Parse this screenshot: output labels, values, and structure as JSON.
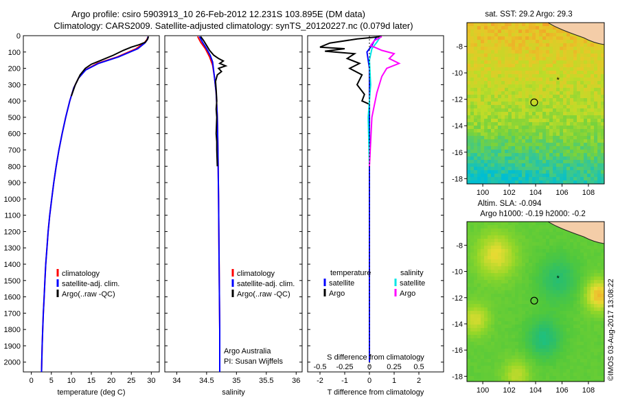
{
  "header": {
    "title_line1": "Argo profile: csiro 5903913_10 26-Feb-2012 12.231S 103.895E (DM data)",
    "title_line2": "Climatology: CARS2009. Satellite-adjusted climatology: synTS_20120227.nc (0.079d later)"
  },
  "colors": {
    "climatology": "#ff0000",
    "satellite": "#0000ff",
    "argo": "#000000",
    "sat_salinity": "#00e5e5",
    "argo_salinity": "#ff00ff"
  },
  "chart_data": [
    {
      "type": "line",
      "panel": "temperature",
      "xlabel": "temperature (deg C)",
      "xticks": [
        0,
        5,
        10,
        15,
        20,
        25,
        30
      ],
      "xlim": [
        -2,
        32
      ],
      "ylim": [
        2060,
        0
      ],
      "yticks": [
        0,
        100,
        200,
        300,
        400,
        500,
        600,
        700,
        800,
        900,
        1000,
        1100,
        1200,
        1300,
        1400,
        1500,
        1600,
        1700,
        1800,
        1900,
        2000
      ],
      "legend": [
        "climatology",
        "satellite-adj. clim.",
        "Argo(..raw -QC)"
      ],
      "series": [
        {
          "name": "climatology",
          "color": "#ff0000",
          "points": [
            [
              29.2,
              5
            ],
            [
              28.9,
              25
            ],
            [
              28.2,
              45
            ],
            [
              26.2,
              80
            ],
            [
              21.5,
              130
            ],
            [
              16.5,
              170
            ],
            [
              13.5,
              210
            ],
            [
              11.8,
              260
            ],
            [
              10.6,
              320
            ],
            [
              9.6,
              400
            ],
            [
              8.6,
              500
            ],
            [
              7.7,
              600
            ],
            [
              6.9,
              700
            ],
            [
              6.2,
              800
            ],
            [
              5.6,
              900
            ],
            [
              5.1,
              1000
            ],
            [
              4.6,
              1100
            ],
            [
              4.2,
              1200
            ],
            [
              3.9,
              1300
            ],
            [
              3.6,
              1400
            ],
            [
              3.4,
              1500
            ],
            [
              3.2,
              1600
            ],
            [
              3.0,
              1700
            ],
            [
              2.85,
              1800
            ],
            [
              2.7,
              1900
            ],
            [
              2.6,
              2000
            ],
            [
              2.55,
              2060
            ]
          ]
        },
        {
          "name": "satellite-adj. clim.",
          "color": "#0000ff",
          "points": [
            [
              29.2,
              5
            ],
            [
              29.0,
              25
            ],
            [
              28.4,
              45
            ],
            [
              26.6,
              80
            ],
            [
              21.8,
              130
            ],
            [
              16.8,
              170
            ],
            [
              13.6,
              210
            ],
            [
              11.8,
              260
            ],
            [
              10.6,
              320
            ],
            [
              9.6,
              400
            ],
            [
              8.6,
              500
            ],
            [
              7.7,
              600
            ],
            [
              6.9,
              700
            ],
            [
              6.2,
              800
            ],
            [
              5.6,
              900
            ],
            [
              5.1,
              1000
            ],
            [
              4.6,
              1100
            ],
            [
              4.2,
              1200
            ],
            [
              3.9,
              1300
            ],
            [
              3.6,
              1400
            ],
            [
              3.4,
              1500
            ],
            [
              3.2,
              1600
            ],
            [
              3.0,
              1700
            ],
            [
              2.85,
              1800
            ],
            [
              2.7,
              1900
            ],
            [
              2.6,
              2000
            ],
            [
              2.55,
              2060
            ]
          ]
        },
        {
          "name": "Argo(..raw -QC)",
          "color": "#000000",
          "points": [
            [
              29.3,
              5
            ],
            [
              29.1,
              20
            ],
            [
              28.5,
              40
            ],
            [
              27.0,
              55
            ],
            [
              25.0,
              70
            ],
            [
              23.0,
              90
            ],
            [
              20.5,
              120
            ],
            [
              17.5,
              150
            ],
            [
              15.0,
              175
            ],
            [
              13.5,
              200
            ],
            [
              12.2,
              240
            ],
            [
              11.0,
              300
            ],
            [
              10.0,
              370
            ]
          ]
        }
      ]
    },
    {
      "type": "line",
      "panel": "salinity",
      "xlabel": "salinity",
      "xticks": [
        34,
        34.5,
        35,
        35.5,
        36
      ],
      "xlim": [
        33.8,
        36.1
      ],
      "ylim": [
        2060,
        0
      ],
      "legend": [
        "climatology",
        "satellite-adj. clim.",
        "Argo(..raw -QC)"
      ],
      "annotation": [
        "Argo Australia",
        "PI: Susan Wijffels"
      ],
      "series": [
        {
          "name": "climatology",
          "color": "#ff0000",
          "points": [
            [
              34.35,
              5
            ],
            [
              34.4,
              40
            ],
            [
              34.48,
              80
            ],
            [
              34.55,
              130
            ],
            [
              34.6,
              180
            ],
            [
              34.63,
              250
            ],
            [
              34.66,
              350
            ],
            [
              34.68,
              500
            ],
            [
              34.69,
              700
            ],
            [
              34.7,
              1000
            ],
            [
              34.71,
              1400
            ],
            [
              34.72,
              1800
            ],
            [
              34.72,
              2060
            ]
          ]
        },
        {
          "name": "satellite-adj. clim.",
          "color": "#0000ff",
          "points": [
            [
              34.38,
              5
            ],
            [
              34.43,
              40
            ],
            [
              34.5,
              80
            ],
            [
              34.56,
              120
            ],
            [
              34.6,
              160
            ],
            [
              34.63,
              250
            ],
            [
              34.66,
              350
            ],
            [
              34.68,
              500
            ],
            [
              34.69,
              700
            ],
            [
              34.7,
              1000
            ],
            [
              34.71,
              1400
            ],
            [
              34.72,
              1800
            ],
            [
              34.72,
              2060
            ]
          ]
        },
        {
          "name": "Argo(..raw -QC)",
          "color": "#000000",
          "points": [
            [
              34.4,
              5
            ],
            [
              34.45,
              30
            ],
            [
              34.5,
              60
            ],
            [
              34.55,
              90
            ],
            [
              34.62,
              120
            ],
            [
              34.7,
              140
            ],
            [
              34.78,
              155
            ],
            [
              34.72,
              170
            ],
            [
              34.82,
              185
            ],
            [
              34.7,
              200
            ],
            [
              34.75,
              220
            ],
            [
              34.68,
              240
            ],
            [
              34.65,
              280
            ],
            [
              34.66,
              330
            ],
            [
              34.67,
              400
            ],
            [
              34.66,
              450
            ],
            [
              34.67,
              500
            ],
            [
              34.66,
              600
            ],
            [
              34.67,
              650
            ],
            [
              34.67,
              700
            ],
            [
              34.68,
              800
            ]
          ]
        }
      ]
    },
    {
      "type": "line",
      "panel": "difference",
      "xlabel": "T difference from climatology",
      "xlabel_top": "S difference from climatology",
      "xticks": [
        -2,
        -1,
        0,
        1,
        2
      ],
      "xticks_top": [
        "-0.5",
        "-0.25",
        "0",
        "0.25",
        "0.5"
      ],
      "xlim": [
        -2.5,
        3
      ],
      "ylim": [
        2060,
        0
      ],
      "legend": {
        "temperature": [
          "satellite",
          "Argo"
        ],
        "salinity": [
          "satellite",
          "Argo"
        ],
        "headers": [
          "temperature",
          "salinity"
        ]
      },
      "series": [
        {
          "name": "satellite",
          "group": "temperature",
          "color": "#0000ff",
          "points": [
            [
              0.3,
              5
            ],
            [
              0.2,
              30
            ],
            [
              0.1,
              60
            ],
            [
              -0.1,
              100
            ],
            [
              0.0,
              200
            ],
            [
              0.0,
              400
            ],
            [
              0.0,
              800
            ],
            [
              0.0,
              1200
            ],
            [
              0.0,
              1600
            ],
            [
              0.0,
              2000
            ]
          ]
        },
        {
          "name": "Argo",
          "group": "temperature",
          "color": "#000000",
          "points": [
            [
              0.5,
              5
            ],
            [
              -0.5,
              20
            ],
            [
              -1.6,
              45
            ],
            [
              -2.0,
              70
            ],
            [
              -1.0,
              80
            ],
            [
              -1.8,
              95
            ],
            [
              -0.6,
              110
            ],
            [
              -0.9,
              140
            ],
            [
              -0.4,
              170
            ],
            [
              -0.8,
              200
            ],
            [
              -0.3,
              240
            ],
            [
              -0.5,
              300
            ],
            [
              -0.2,
              360
            ],
            [
              -0.3,
              400
            ],
            [
              0.0,
              420
            ]
          ]
        },
        {
          "name": "satellite",
          "group": "salinity",
          "color": "#00e5e5",
          "points": [
            [
              0.45,
              5
            ],
            [
              0.3,
              40
            ],
            [
              0.1,
              80
            ],
            [
              0.0,
              150
            ],
            [
              0.05,
              300
            ],
            [
              -0.05,
              500
            ],
            [
              0.0,
              800
            ]
          ]
        },
        {
          "name": "Argo",
          "group": "salinity",
          "color": "#ff00ff",
          "points": [
            [
              0.5,
              5
            ],
            [
              0.2,
              30
            ],
            [
              0.05,
              60
            ],
            [
              0.5,
              90
            ],
            [
              1.0,
              110
            ],
            [
              0.8,
              140
            ],
            [
              1.2,
              170
            ],
            [
              0.7,
              200
            ],
            [
              0.5,
              250
            ],
            [
              0.3,
              350
            ],
            [
              0.1,
              500
            ],
            [
              0.0,
              800
            ]
          ]
        }
      ]
    },
    {
      "type": "heatmap",
      "panel": "map-sst",
      "title": "sat. SST: 29.2 Argo: 29.3",
      "xticks": [
        100,
        102,
        104,
        106,
        108
      ],
      "yticks": [
        -8,
        -10,
        -12,
        -14,
        -16,
        -18
      ],
      "xlim": [
        98.8,
        109.2
      ],
      "ylim": [
        -18.4,
        -6.2
      ],
      "argo_position": [
        103.895,
        -12.231
      ],
      "previous_position": [
        105.7,
        -10.5
      ]
    },
    {
      "type": "heatmap",
      "panel": "map-sla",
      "title": "Altim. SLA: -0.094",
      "subtitle": "Argo h1000: -0.19 h2000: -0.2",
      "xticks": [
        100,
        102,
        104,
        106,
        108
      ],
      "yticks": [
        -8,
        -10,
        -12,
        -14,
        -16,
        -18
      ],
      "xlim": [
        98.8,
        109.2
      ],
      "ylim": [
        -18.4,
        -6.2
      ],
      "argo_position": [
        103.895,
        -12.231
      ],
      "previous_position": [
        105.7,
        -10.5
      ]
    }
  ],
  "footer": {
    "credit": "©IMOS 03-Aug-2017 13:08:22"
  }
}
